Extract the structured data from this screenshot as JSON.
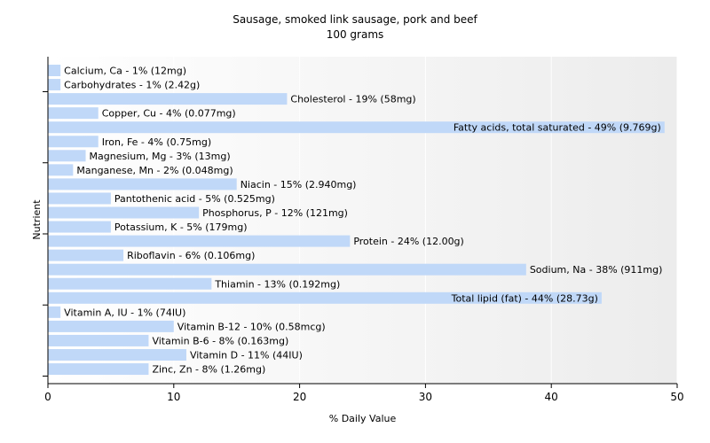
{
  "chart_data": {
    "type": "bar",
    "orientation": "horizontal",
    "title": "Sausage, smoked link sausage, pork and beef",
    "subtitle": "100 grams",
    "xlabel": "% Daily Value",
    "ylabel": "Nutrient",
    "xlim": [
      0,
      50
    ],
    "xticks": [
      0,
      10,
      20,
      30,
      40,
      50
    ],
    "grid": true,
    "bar_color": "#c0d8f8",
    "categories": [
      "Calcium, Ca",
      "Carbohydrates",
      "Cholesterol",
      "Copper, Cu",
      "Fatty acids, total saturated",
      "Iron, Fe",
      "Magnesium, Mg",
      "Manganese, Mn",
      "Niacin",
      "Pantothenic acid",
      "Phosphorus, P",
      "Potassium, K",
      "Protein",
      "Riboflavin",
      "Sodium, Na",
      "Thiamin",
      "Total lipid (fat)",
      "Vitamin A, IU",
      "Vitamin B-12",
      "Vitamin B-6",
      "Vitamin D",
      "Zinc, Zn"
    ],
    "values": [
      1,
      1,
      19,
      4,
      49,
      4,
      3,
      2,
      15,
      5,
      12,
      5,
      24,
      6,
      38,
      13,
      44,
      1,
      10,
      8,
      11,
      8
    ],
    "labels": [
      "Calcium, Ca - 1% (12mg)",
      "Carbohydrates - 1% (2.42g)",
      "Cholesterol - 19% (58mg)",
      "Copper, Cu - 4% (0.077mg)",
      "Fatty acids, total saturated - 49% (9.769g)",
      "Iron, Fe - 4% (0.75mg)",
      "Magnesium, Mg - 3% (13mg)",
      "Manganese, Mn - 2% (0.048mg)",
      "Niacin - 15% (2.940mg)",
      "Pantothenic acid - 5% (0.525mg)",
      "Phosphorus, P - 12% (121mg)",
      "Potassium, K - 5% (179mg)",
      "Protein - 24% (12.00g)",
      "Riboflavin - 6% (0.106mg)",
      "Sodium, Na - 38% (911mg)",
      "Thiamin - 13% (0.192mg)",
      "Total lipid (fat) - 44% (28.73g)",
      "Vitamin A, IU - 1% (74IU)",
      "Vitamin B-12 - 10% (0.58mcg)",
      "Vitamin B-6 - 8% (0.163mg)",
      "Vitamin D - 11% (44IU)",
      "Zinc, Zn - 8% (1.26mg)"
    ]
  }
}
